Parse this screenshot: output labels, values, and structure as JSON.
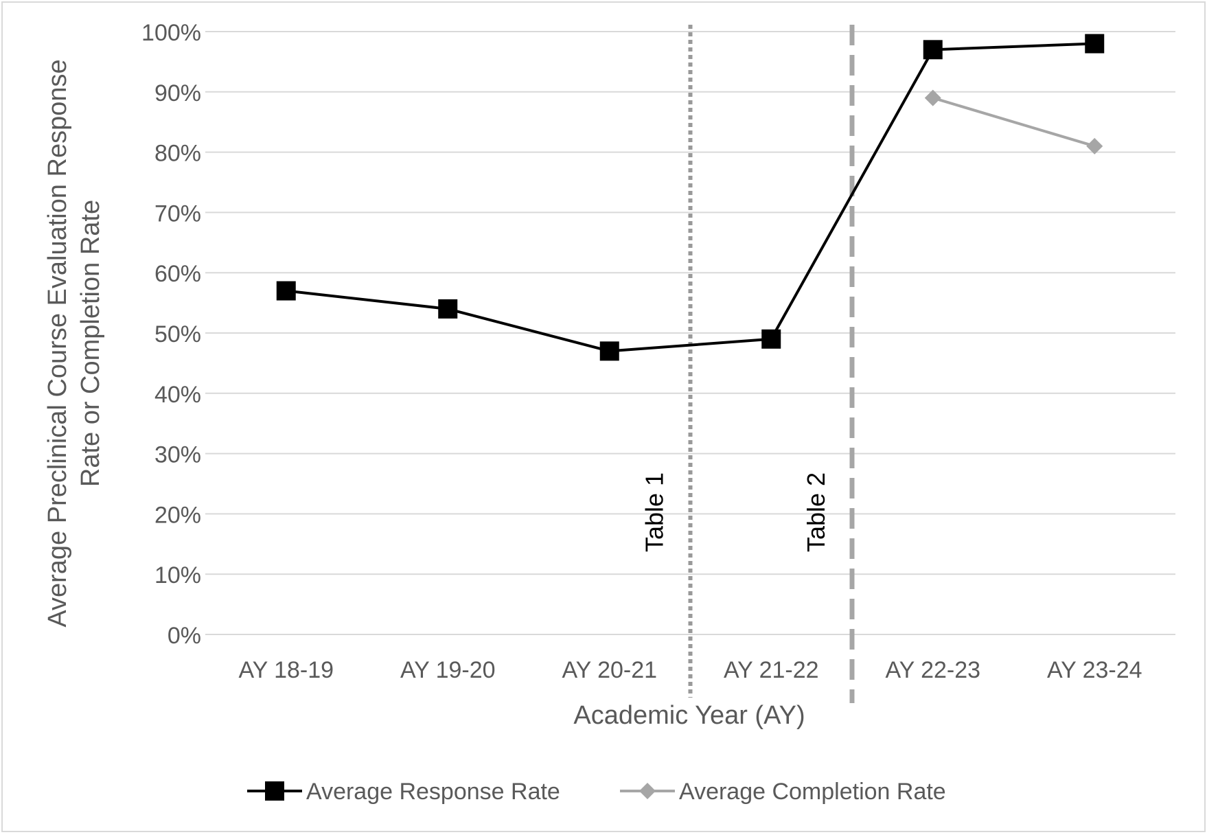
{
  "chart_data": {
    "type": "line",
    "title": "",
    "xlabel": "Academic Year (AY)",
    "ylabel_lines": [
      "Average Preclinical Course Evaluation Response",
      "Rate or Completion Rate"
    ],
    "ylim": [
      0,
      100
    ],
    "y_ticks": [
      "0%",
      "10%",
      "20%",
      "30%",
      "40%",
      "50%",
      "60%",
      "70%",
      "80%",
      "90%",
      "100%"
    ],
    "y_tick_values": [
      0,
      10,
      20,
      30,
      40,
      50,
      60,
      70,
      80,
      90,
      100
    ],
    "grid": "horizontal",
    "legend_position": "bottom",
    "categories": [
      "AY 18-19",
      "AY 19-20",
      "AY 20-21",
      "AY 21-22",
      "AY 22-23",
      "AY 23-24"
    ],
    "series": [
      {
        "name": "Average Response Rate",
        "values": [
          57,
          54,
          47,
          49,
          97,
          98
        ],
        "color": "#000000",
        "marker": "square"
      },
      {
        "name": "Average Completion Rate",
        "values": [
          null,
          null,
          null,
          null,
          89,
          81
        ],
        "color": "#a6a6a6",
        "marker": "diamond"
      }
    ],
    "annotations": [
      {
        "label": "Table 1",
        "line_style": "dotted",
        "between": [
          "AY 20-21",
          "AY 21-22"
        ],
        "color": "#999999"
      },
      {
        "label": "Table 2",
        "line_style": "dashed",
        "between": [
          "AY 21-22",
          "AY 22-23"
        ],
        "color": "#a6a6a6"
      }
    ],
    "colors": {
      "axis_text": "#595959",
      "gridline": "#d9d9d9",
      "border": "#d9d9d9"
    }
  }
}
